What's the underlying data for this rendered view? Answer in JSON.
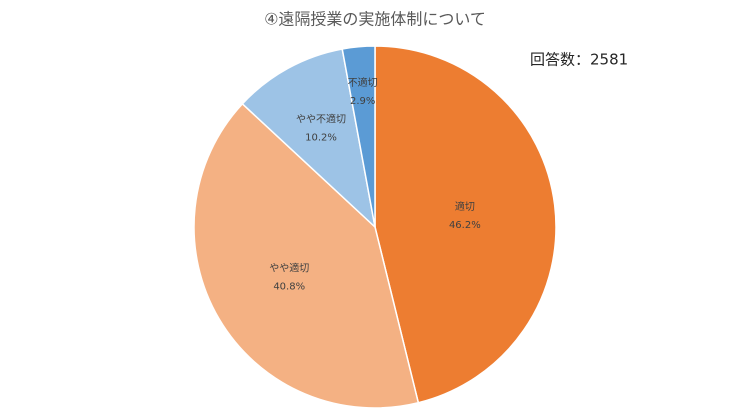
{
  "chart_data": {
    "type": "pie",
    "title": "④遠隔授業の実施体制について",
    "annotation": "回答数：2581",
    "categories": [
      "適切",
      "やや適切",
      "やや不適切",
      "不適切"
    ],
    "values": [
      46.2,
      40.8,
      10.2,
      2.9
    ],
    "value_labels": [
      "46.2%",
      "40.8%",
      "10.2%",
      "2.9%"
    ],
    "colors": [
      "#ED7D31",
      "#F4B183",
      "#9DC3E6",
      "#5B9BD5"
    ]
  }
}
